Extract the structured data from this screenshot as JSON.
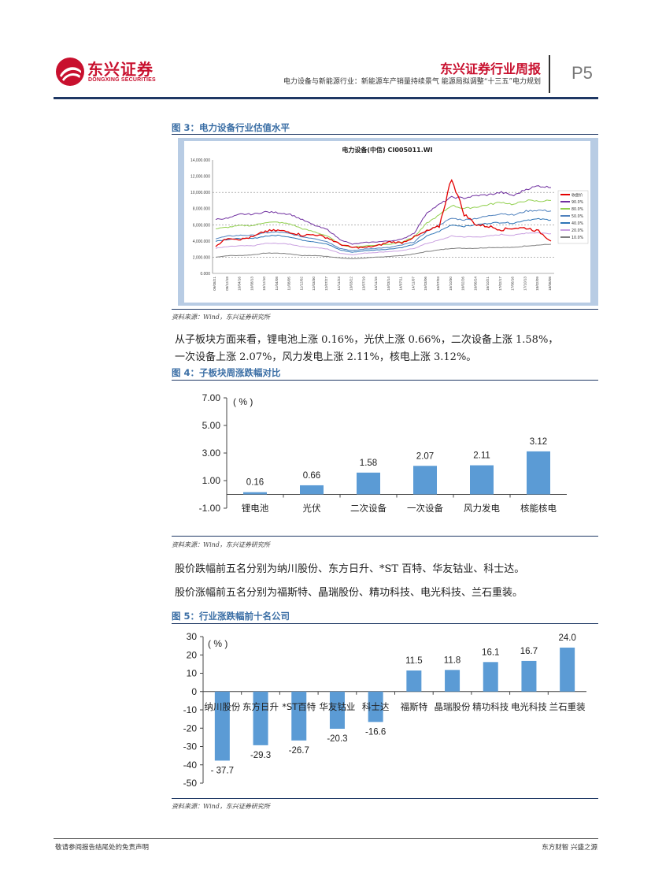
{
  "header": {
    "logo_cn": "东兴证券",
    "logo_en": "DONGXING SECURITIES",
    "report_title": "东兴证券行业周报",
    "report_subtitle": "电力设备与新能源行业：新能源车产销量持续景气 能源局拟调整“十三五”电力规划",
    "page_label": "P5"
  },
  "colors": {
    "brand_red": "#c8102e",
    "navy": "#1f3864",
    "caption_blue": "#3a6ea5",
    "bar_blue": "#5b9bd5"
  },
  "figure3": {
    "caption": "图 3：电力设备行业估值水平",
    "chart_title": "电力设备(中信) CI005011.WI",
    "source": "资料来源：Wind，东兴证券研究所",
    "chart_data": {
      "type": "line",
      "title": "电力设备(中信) CI005011.WI",
      "ylim": [
        0,
        14000
      ],
      "yticks": [
        "14,000.000",
        "12,000.000",
        "10,000.000",
        "8,000.000",
        "6,000.000",
        "4,000.000",
        "2,000.000",
        "0.000"
      ],
      "xticks": [
        "09/08/21",
        "09/12/18",
        "10/04/16",
        "10/08/13",
        "10/12/10",
        "11/04/08",
        "11/08/05",
        "11/12/02",
        "12/03/30",
        "12/07/27",
        "12/11/23",
        "13/03/22",
        "13/07/19",
        "13/11/15",
        "14/03/14",
        "14/07/11",
        "14/11/07",
        "15/03/06",
        "15/07/03",
        "15/10/30",
        "16/02/26",
        "16/06/24",
        "16/10/21",
        "17/02/17",
        "17/06/16",
        "17/10/13",
        "18/02/09",
        "18/06/08"
      ],
      "legend": [
        "收盘价",
        "90.0%",
        "80.0%",
        "50.0%",
        "40.0%",
        "20.0%",
        "10.0%"
      ],
      "series": [
        {
          "name": "收盘价",
          "color": "#e30000",
          "values": [
            3400,
            4400,
            4200,
            4500,
            5200,
            5300,
            5100,
            4700,
            4800,
            4400,
            3600,
            3200,
            3200,
            3400,
            3900,
            3800,
            4500,
            5200,
            5800,
            11800,
            7300,
            6000,
            5800,
            5400,
            5600,
            5600,
            5200,
            4000
          ]
        },
        {
          "name": "90.0%",
          "color": "#7030a0",
          "values": [
            6700,
            6800,
            7300,
            7300,
            7600,
            7500,
            7300,
            6600,
            5900,
            5400,
            4200,
            3600,
            3800,
            3900,
            4000,
            4200,
            5000,
            7500,
            8500,
            9400,
            9300,
            9600,
            9700,
            10000,
            9600,
            10400,
            10800,
            10600
          ]
        },
        {
          "name": "80.0%",
          "color": "#92d050",
          "values": [
            5500,
            5700,
            5900,
            5900,
            6300,
            6300,
            6100,
            5500,
            5100,
            4600,
            3600,
            3200,
            3400,
            3500,
            3600,
            3900,
            4500,
            6200,
            7200,
            8400,
            8000,
            8200,
            8500,
            8800,
            8500,
            9000,
            8900,
            9000
          ]
        },
        {
          "name": "50.0%",
          "color": "#4f81bd",
          "values": [
            4300,
            4600,
            4700,
            4700,
            5000,
            5100,
            4900,
            4500,
            4300,
            3900,
            3100,
            2800,
            3000,
            3100,
            3200,
            3500,
            3900,
            5200,
            6000,
            6800,
            6600,
            6800,
            7100,
            7400,
            7200,
            7700,
            7800,
            7700
          ]
        },
        {
          "name": "40.0%",
          "color": "#2e75b6",
          "values": [
            4000,
            4200,
            4300,
            4300,
            4600,
            4700,
            4500,
            4100,
            3900,
            3600,
            2900,
            2600,
            2800,
            2900,
            3000,
            3200,
            3600,
            4600,
            5200,
            6000,
            5800,
            6000,
            6200,
            6300,
            6200,
            6600,
            6700,
            6600
          ]
        },
        {
          "name": "20.0%",
          "color": "#c9a0e0",
          "values": [
            3100,
            3300,
            3400,
            3400,
            3700,
            3700,
            3600,
            3300,
            3200,
            3000,
            2500,
            2300,
            2500,
            2600,
            2700,
            2800,
            3100,
            3700,
            4100,
            4600,
            4500,
            4500,
            4600,
            4800,
            4700,
            5000,
            5000,
            4900
          ]
        },
        {
          "name": "10.0%",
          "color": "#7f7f7f",
          "values": [
            2000,
            2200,
            2200,
            2300,
            2500,
            2500,
            2400,
            2200,
            2200,
            2100,
            1900,
            1800,
            1900,
            2000,
            2100,
            2200,
            2400,
            2700,
            2900,
            3100,
            3100,
            3100,
            3200,
            3200,
            3200,
            3400,
            3500,
            3600
          ]
        }
      ]
    }
  },
  "paragraph1_line1": "从子板块方面来看，锂电池上涨 0.16%，光伏上涨 0.66%，二次设备上涨 1.58%，",
  "paragraph1_line2": "一次设备上涨 2.07%，风力发电上涨 2.11%，核电上涨 3.12%。",
  "figure4": {
    "caption": "图 4：子板块周涨跌幅对比",
    "source": "资料来源：Wind，东兴证券研究所",
    "chart_data": {
      "type": "bar",
      "unit": "( % )",
      "ylim": [
        -1,
        7
      ],
      "yticks": [
        "7.00",
        "5.00",
        "3.00",
        "1.00",
        "-1.00"
      ],
      "categories": [
        "锂电池",
        "光伏",
        "二次设备",
        "一次设备",
        "风力发电",
        "核能核电"
      ],
      "values": [
        0.16,
        0.66,
        1.58,
        2.07,
        2.11,
        3.12
      ],
      "labels": [
        "0.16",
        "0.66",
        "1.58",
        "2.07",
        "2.11",
        "3.12"
      ]
    }
  },
  "paragraph2": "股价跌幅前五名分别为纳川股份、东方日升、*ST 百特、华友钴业、科士达。",
  "paragraph3": "股价涨幅前五名分别为福斯特、晶瑞股份、精功科技、电光科技、兰石重装。",
  "figure5": {
    "caption": "图 5：行业涨跌幅前十名公司",
    "source": "资料来源：Wind，东兴证券研究所",
    "chart_data": {
      "type": "bar",
      "unit": "( % )",
      "ylim": [
        -50,
        30
      ],
      "yticks": [
        "30",
        "20",
        "10",
        "0",
        "-10",
        "-20",
        "-30",
        "-40",
        "-50"
      ],
      "categories": [
        "纳川股份",
        "东方日升",
        "*ST百特",
        "华友钴业",
        "科士达",
        "福斯特",
        "晶瑞股份",
        "精功科技",
        "电光科技",
        "兰石重装"
      ],
      "values": [
        -37.7,
        -29.3,
        -26.7,
        -20.3,
        -16.6,
        11.5,
        11.8,
        16.1,
        16.7,
        24.0
      ],
      "labels": [
        "- 37.7",
        "-29.3",
        "-26.7",
        "-20.3",
        "-16.6",
        "11.5",
        "11.8",
        "16.1",
        "16.7",
        "24.0"
      ]
    }
  },
  "footer": {
    "left": "敬请参阅报告结尾处的免责声明",
    "right": "东方财智 兴盛之源"
  }
}
